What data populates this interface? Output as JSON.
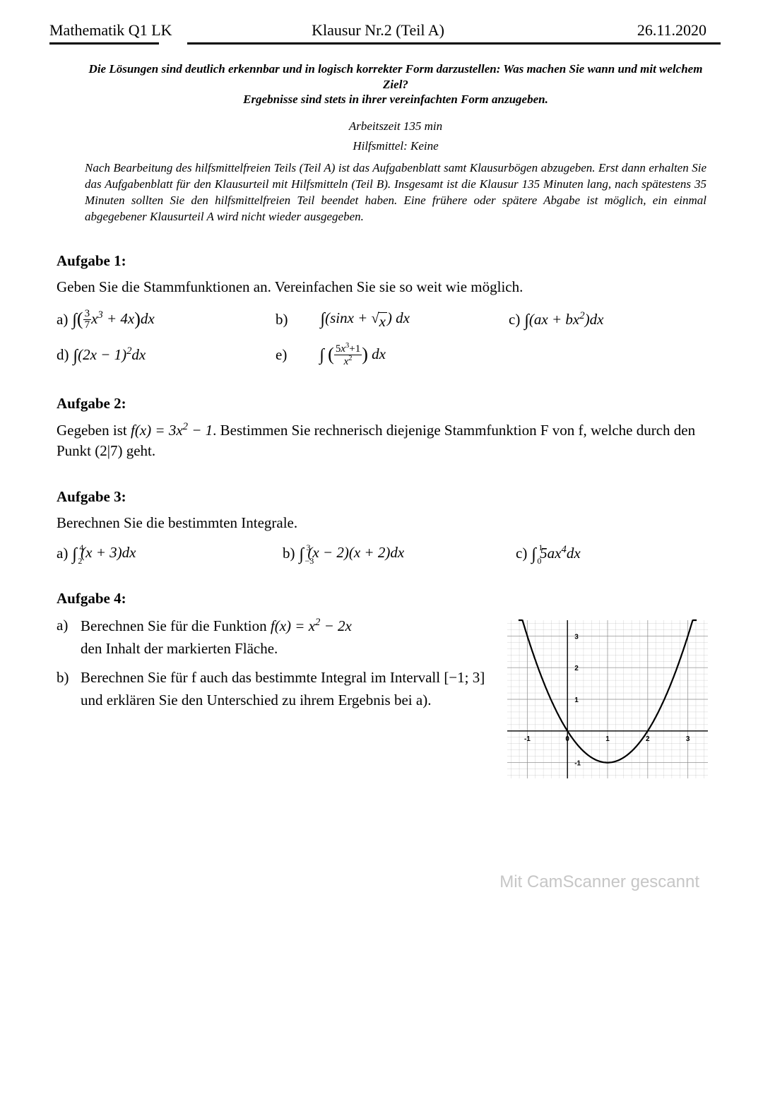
{
  "header": {
    "left": "Mathematik Q1 LK",
    "center": "Klausur Nr.2 (Teil A)",
    "right": "26.11.2020"
  },
  "instructions": {
    "line1": "Die Lösungen sind deutlich erkennbar und in logisch korrekter Form darzustellen: Was machen Sie wann und mit welchem Ziel?",
    "line2": "Ergebnisse sind stets in ihrer vereinfachten Form anzugeben.",
    "time": "Arbeitszeit 135 min",
    "aids": "Hilfsmittel: Keine",
    "paragraph": "Nach Bearbeitung des hilfsmittelfreien Teils (Teil A) ist das Aufgabenblatt samt Klausurbögen abzugeben. Erst dann erhalten Sie das Aufgabenblatt für den Klausurteil mit Hilfsmitteln (Teil B). Insgesamt ist die Klausur 135 Minuten lang, nach spätestens 35 Minuten sollten Sie den hilfsmittelfreien Teil beendet haben. Eine frühere oder spätere Abgabe ist möglich, ein einmal abgegebener Klausurteil A wird nicht wieder ausgegeben."
  },
  "tasks": {
    "t1": {
      "title": "Aufgabe 1:",
      "text": "Geben Sie die Stammfunktionen an. Vereinfachen Sie sie so weit wie möglich.",
      "a_label": "a)",
      "b_label": "b)",
      "c_label": "c)",
      "d_label": "d)",
      "e_label": "e)"
    },
    "t2": {
      "title": "Aufgabe 2:",
      "text_pre": "Gegeben ist ",
      "text_mid": ". Bestimmen Sie rechnerisch diejenige Stammfunktion F von f, welche durch den Punkt (2|7) geht."
    },
    "t3": {
      "title": "Aufgabe 3:",
      "text": "Berechnen Sie die bestimmten Integrale.",
      "a_label": "a)",
      "b_label": "b)",
      "c_label": "c)"
    },
    "t4": {
      "title": "Aufgabe 4:",
      "a_label": "a)",
      "a_pre": "Berechnen Sie für die Funktion ",
      "a_post": " den Inhalt der markierten Fläche.",
      "b_label": "b)",
      "b_text": "Berechnen Sie für f auch das bestimmte Integral im Intervall [−1; 3] und erklären Sie den Unterschied zu ihrem Ergebnis bei a)."
    }
  },
  "graph": {
    "xmin": -1.5,
    "xmax": 3.5,
    "ymin": -1.5,
    "ymax": 3.5,
    "xticks": [
      -1,
      0,
      1,
      2,
      3
    ],
    "yticks": [
      -1,
      1,
      2,
      3
    ],
    "xtick_labels": [
      "-1",
      "0",
      "1",
      "2",
      "3"
    ],
    "ytick_labels": [
      "-1",
      "1",
      "2",
      "3"
    ],
    "grid_color": "#888888",
    "axis_color": "#000000",
    "curve_color": "#000000",
    "curve_width": 2.2,
    "grid_width": 0.5,
    "label_fontsize": 10,
    "function": "x^2 - 2x",
    "shaded_interval": [
      -1,
      3
    ]
  },
  "watermark": "Mit CamScanner gescannt"
}
